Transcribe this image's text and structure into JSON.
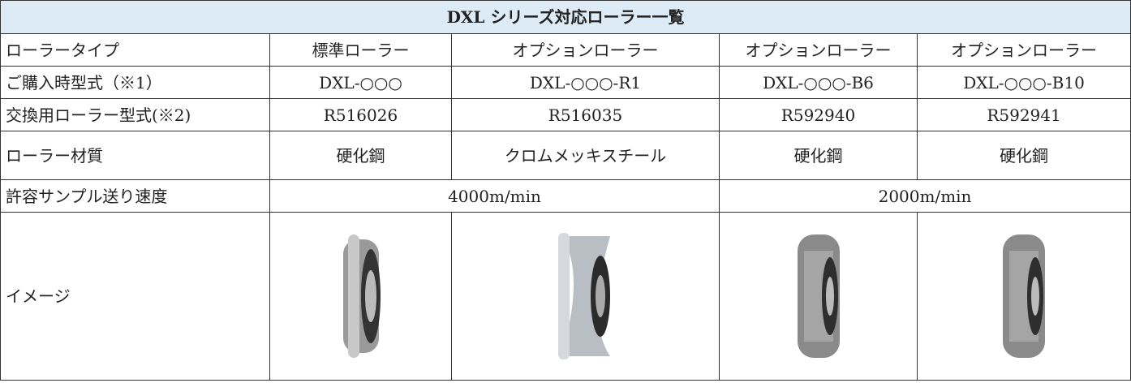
{
  "title": "DXL シリーズ対応ローラー一覧",
  "table": {
    "rows": [
      [
        "ローラータイプ",
        "標準ローラー",
        "オプションローラー",
        "オプションローラー",
        "オプションローラー"
      ],
      [
        "ご購入時型式（※1）",
        "DXL-○○○",
        "DXL-○○○-R1",
        "DXL-○○○-B6",
        "DXL-○○○-B10"
      ],
      [
        "交換用ローラー型式(※2)",
        "R516026",
        "R516035",
        "R592940",
        "R592941"
      ],
      [
        "ローラー材質",
        "硬化鋼",
        "クロムメッキスチール",
        "硬化鋼",
        "硬化鋼"
      ],
      [
        "許容サンプル送り速度",
        "4000m/min",
        "2000m/min"
      ],
      [
        "イメージ"
      ]
    ]
  }
}
